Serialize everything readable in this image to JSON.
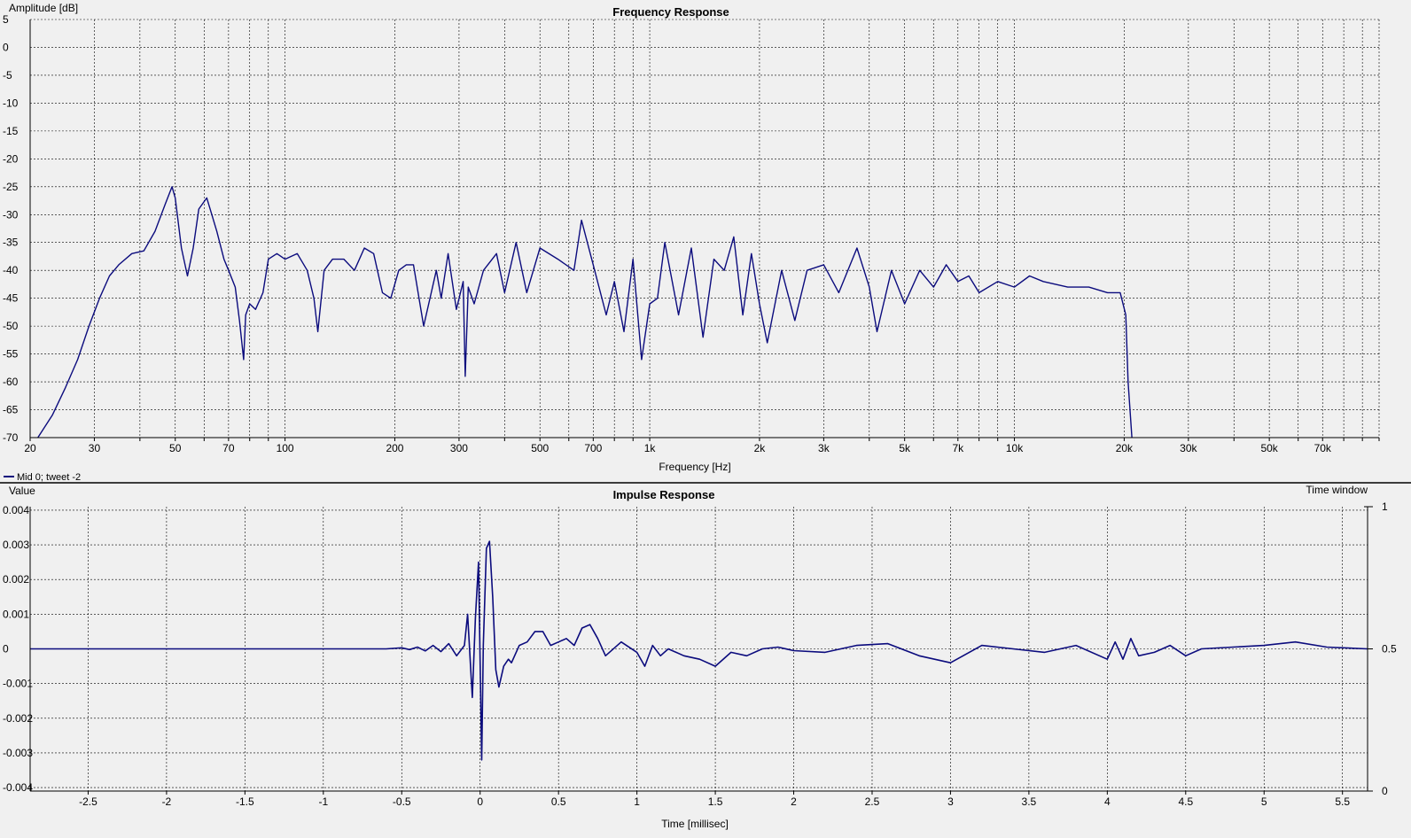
{
  "colors": {
    "background": "#f0f0f0",
    "trace": "#0b0b7d",
    "axis": "#000000",
    "grid": "#000000"
  },
  "legend": {
    "label": "Mid 0; tweet -2",
    "placement": "bottom-left of upper chart"
  },
  "chart_data": [
    {
      "type": "line",
      "title": "Frequency Response",
      "xlabel": "Frequency [Hz]",
      "ylabel": "Amplitude [dB]",
      "xscale": "log",
      "xlim": [
        20,
        100000
      ],
      "ylim": [
        -70,
        5
      ],
      "grid": true,
      "x_tick_values": [
        20,
        30,
        50,
        70,
        100,
        200,
        300,
        500,
        700,
        1000,
        2000,
        3000,
        5000,
        7000,
        10000,
        20000,
        30000,
        50000,
        70000
      ],
      "x_tick_labels": [
        "20",
        "30",
        "50",
        "70",
        "100",
        "200",
        "300",
        "500",
        "700",
        "1k",
        "2k",
        "3k",
        "5k",
        "7k",
        "10k",
        "20k",
        "30k",
        "50k",
        "70k"
      ],
      "y_tick_values": [
        5,
        0,
        -5,
        -10,
        -15,
        -20,
        -25,
        -30,
        -35,
        -40,
        -45,
        -50,
        -55,
        -60,
        -65,
        -70
      ],
      "y_tick_labels": [
        "5",
        "0",
        "-5",
        "-10",
        "-15",
        "-20",
        "-25",
        "-30",
        "-35",
        "-40",
        "-45",
        "-50",
        "-55",
        "-60",
        "-65",
        "-70"
      ],
      "series": [
        {
          "name": "Mid 0; tweet -2",
          "x": [
            21,
            23,
            25,
            27,
            29,
            31,
            33,
            35,
            38,
            41,
            44,
            47,
            49,
            50,
            52,
            54,
            56,
            58,
            61,
            63,
            65,
            68,
            70,
            73,
            75,
            77,
            78,
            80,
            83,
            87,
            90,
            95,
            100,
            108,
            115,
            120,
            123,
            128,
            135,
            145,
            155,
            165,
            175,
            185,
            195,
            205,
            215,
            225,
            240,
            260,
            268,
            280,
            295,
            308,
            312,
            318,
            330,
            350,
            380,
            400,
            430,
            460,
            500,
            560,
            620,
            650,
            700,
            760,
            800,
            850,
            900,
            950,
            1000,
            1050,
            1100,
            1200,
            1300,
            1400,
            1500,
            1600,
            1700,
            1800,
            1900,
            2000,
            2100,
            2300,
            2500,
            2700,
            3000,
            3300,
            3700,
            4000,
            4200,
            4600,
            5000,
            5500,
            6000,
            6500,
            7000,
            7500,
            8000,
            9000,
            10000,
            11000,
            12000,
            14000,
            16000,
            18000,
            19500,
            20200,
            20500,
            21000
          ],
          "y": [
            -70,
            -66,
            -61,
            -56,
            -50,
            -45,
            -41,
            -39,
            -37,
            -36.5,
            -33,
            -28,
            -25,
            -27,
            -36,
            -41,
            -36,
            -29,
            -27,
            -30,
            -33,
            -38,
            -40,
            -43,
            -49,
            -56,
            -48,
            -46,
            -47,
            -44,
            -38,
            -37,
            -38,
            -37,
            -40,
            -45,
            -51,
            -40,
            -38,
            -38,
            -40,
            -36,
            -37,
            -44,
            -45,
            -40,
            -39,
            -39,
            -50,
            -40,
            -45,
            -37,
            -47,
            -42,
            -59,
            -43,
            -46,
            -40,
            -37,
            -44,
            -35,
            -44,
            -36,
            -38,
            -40,
            -31,
            -39,
            -48,
            -42,
            -51,
            -38,
            -56,
            -46,
            -45,
            -35,
            -48,
            -36,
            -52,
            -38,
            -40,
            -34,
            -48,
            -37,
            -46,
            -53,
            -40,
            -49,
            -40,
            -39,
            -44,
            -36,
            -43,
            -51,
            -40,
            -46,
            -40,
            -43,
            -39,
            -42,
            -41,
            -44,
            -42,
            -43,
            -41,
            -42,
            -43,
            -43,
            -44,
            -44,
            -48,
            -60,
            -70
          ]
        }
      ]
    },
    {
      "type": "line",
      "title": "Impulse Response",
      "xlabel": "Time [millisec]",
      "ylabel": "Value",
      "secondary_ylabel": "Time window",
      "xlim": [
        -2.87,
        5.66
      ],
      "ylim": [
        -0.0041,
        0.0041
      ],
      "secondary_ylim": [
        0,
        1
      ],
      "grid": true,
      "x_tick_values": [
        -2.5,
        -2,
        -1.5,
        -1,
        -0.5,
        0,
        0.5,
        1,
        1.5,
        2,
        2.5,
        3,
        3.5,
        4,
        4.5,
        5,
        5.5
      ],
      "x_tick_labels": [
        "-2.5",
        "-2",
        "-1.5",
        "-1",
        "-0.5",
        "0",
        "0.5",
        "1",
        "1.5",
        "2",
        "2.5",
        "3",
        "3.5",
        "4",
        "4.5",
        "5",
        "5.5"
      ],
      "y_tick_values": [
        0.004,
        0.003,
        0.002,
        0.001,
        0,
        -0.001,
        -0.002,
        -0.003,
        -0.004
      ],
      "y_tick_labels": [
        "0.004",
        "0.003",
        "0.002",
        "0.001",
        "0",
        "-0.001",
        "-0.002",
        "-0.003",
        "-0.004"
      ],
      "secondary_tick_values": [
        1,
        0.5,
        0
      ],
      "secondary_tick_labels": [
        "1",
        "0.5",
        "0"
      ],
      "series": [
        {
          "name": "Mid 0; tweet -2",
          "x": [
            -2.87,
            -0.6,
            -0.5,
            -0.45,
            -0.4,
            -0.35,
            -0.3,
            -0.25,
            -0.2,
            -0.15,
            -0.1,
            -0.08,
            -0.05,
            -0.03,
            -0.01,
            0.01,
            0.02,
            0.04,
            0.06,
            0.08,
            0.1,
            0.12,
            0.15,
            0.18,
            0.2,
            0.25,
            0.3,
            0.35,
            0.4,
            0.45,
            0.5,
            0.55,
            0.6,
            0.65,
            0.7,
            0.75,
            0.8,
            0.9,
            1.0,
            1.05,
            1.1,
            1.15,
            1.2,
            1.3,
            1.4,
            1.5,
            1.6,
            1.7,
            1.8,
            1.9,
            2.0,
            2.2,
            2.4,
            2.6,
            2.8,
            3.0,
            3.2,
            3.4,
            3.6,
            3.8,
            4.0,
            4.05,
            4.1,
            4.15,
            4.2,
            4.3,
            4.4,
            4.5,
            4.6,
            4.8,
            5.0,
            5.2,
            5.4,
            5.66
          ],
          "y": [
            0,
            0,
            3e-05,
            -2e-05,
            5e-05,
            -6e-05,
            0.0001,
            -8e-05,
            0.00015,
            -0.0002,
            0.0001,
            0.001,
            -0.0014,
            0.0009,
            0.0025,
            -0.0032,
            0.0001,
            0.0029,
            0.0031,
            0.0015,
            -0.0006,
            -0.0011,
            -0.0005,
            -0.0003,
            -0.0004,
            0.0001,
            0.0002,
            0.0005,
            0.0005,
            0.0001,
            0.0002,
            0.0003,
            0.0001,
            0.0006,
            0.0007,
            0.0003,
            -0.0002,
            0.0002,
            -0.0001,
            -0.0005,
            0.0001,
            -0.0002,
            0,
            -0.0002,
            -0.0003,
            -0.0005,
            -0.0001,
            -0.0002,
            0,
            5e-05,
            -5e-05,
            -0.0001,
            0.0001,
            0.00015,
            -0.0002,
            -0.0004,
            0.0001,
            0,
            -0.0001,
            0.0001,
            -0.0003,
            0.0002,
            -0.0003,
            0.0003,
            -0.0002,
            -0.0001,
            0.0001,
            -0.0002,
            0,
            5e-05,
            0.0001,
            0.0002,
            5e-05,
            0
          ]
        }
      ]
    }
  ]
}
